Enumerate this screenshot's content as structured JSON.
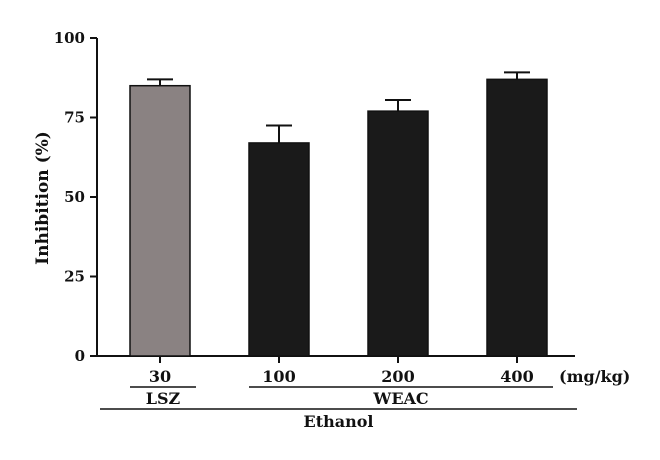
{
  "chart_data": {
    "type": "bar",
    "title": "",
    "ylabel": "Inhibition (%)",
    "xlabel": "",
    "ylim": [
      0,
      100
    ],
    "yticks": [
      0,
      25,
      50,
      75,
      100
    ],
    "grid": false,
    "unit_label": "(mg/kg)",
    "categories": [
      "30",
      "100",
      "200",
      "400"
    ],
    "values": [
      85,
      67,
      77,
      87
    ],
    "errors": [
      2,
      5.5,
      3.5,
      2.2
    ],
    "bar_colors": [
      "#8a8282",
      "#1a1a1a",
      "#1a1a1a",
      "#1a1a1a"
    ],
    "groups": [
      {
        "label": "LSZ",
        "categories": [
          0
        ]
      },
      {
        "label": "WEAC",
        "categories": [
          1,
          2,
          3
        ]
      }
    ],
    "outer_group": {
      "label": "Ethanol",
      "categories": [
        0,
        1,
        2,
        3
      ]
    }
  }
}
